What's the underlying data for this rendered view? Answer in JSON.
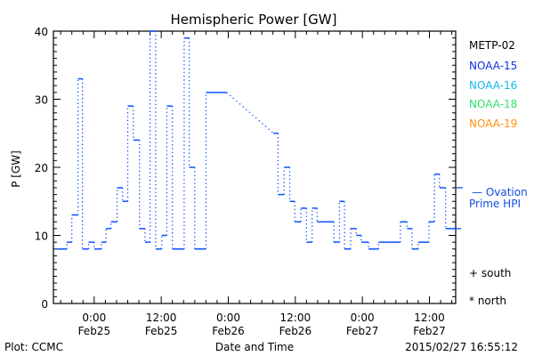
{
  "chart_data": {
    "type": "line",
    "title": "Hemispheric Power [GW]",
    "xlabel": "Date and Time",
    "ylabel": "P [GW]",
    "x_unit": "hours since 2015-02-25 00:00",
    "xlim": [
      -7.3,
      64.7
    ],
    "ylim": [
      0,
      40
    ],
    "yticks": [
      0,
      10,
      20,
      30,
      40
    ],
    "xticks": [
      {
        "h": 0,
        "time": "0:00",
        "date": "Feb25"
      },
      {
        "h": 12,
        "time": "12:00",
        "date": "Feb25"
      },
      {
        "h": 24,
        "time": "0:00",
        "date": "Feb26"
      },
      {
        "h": 36,
        "time": "12:00",
        "date": "Feb26"
      },
      {
        "h": 48,
        "time": "0:00",
        "date": "Feb27"
      },
      {
        "h": 60,
        "time": "12:00",
        "date": "Feb27"
      }
    ],
    "series": [
      {
        "name": "NOAA-15",
        "color": "#0a50ff",
        "steps": [
          [
            -6.8,
            -4.9,
            8
          ],
          [
            -4.9,
            -4,
            9
          ],
          [
            -4,
            -2.9,
            13
          ],
          [
            -2.9,
            -2.1,
            33
          ],
          [
            -2.1,
            -1,
            8
          ],
          [
            -1,
            0,
            9
          ],
          [
            0,
            1.3,
            8
          ],
          [
            1.3,
            2.1,
            9
          ],
          [
            2.1,
            3,
            11
          ],
          [
            3,
            4.1,
            12
          ],
          [
            4.1,
            5.1,
            17
          ],
          [
            5.1,
            6,
            15
          ],
          [
            6,
            7,
            29
          ],
          [
            7,
            8.1,
            24
          ],
          [
            8.1,
            9.1,
            11
          ],
          [
            9.1,
            10,
            9
          ],
          [
            10,
            11,
            40
          ],
          [
            11,
            12.1,
            8
          ],
          [
            12.1,
            13,
            10
          ],
          [
            13,
            14,
            29
          ],
          [
            14,
            16.1,
            8
          ],
          [
            16.1,
            17,
            39
          ],
          [
            17,
            18,
            20
          ],
          [
            18,
            20,
            8
          ],
          [
            20,
            23.7,
            31
          ],
          [
            32.1,
            32.9,
            25
          ],
          [
            32.9,
            34,
            16
          ],
          [
            34,
            35,
            20
          ],
          [
            35,
            35.9,
            15
          ],
          [
            35.9,
            37,
            12
          ],
          [
            37,
            38,
            14
          ],
          [
            38,
            39,
            9
          ],
          [
            39,
            39.9,
            14
          ],
          [
            39.9,
            42.9,
            12
          ],
          [
            42.9,
            43.9,
            9
          ],
          [
            43.9,
            44.8,
            15
          ],
          [
            44.8,
            45.9,
            8
          ],
          [
            45.9,
            46.9,
            11
          ],
          [
            46.9,
            47.8,
            10
          ],
          [
            47.8,
            49.1,
            9
          ],
          [
            49.1,
            50.9,
            8
          ],
          [
            50.9,
            54.8,
            9
          ],
          [
            54.8,
            56,
            12
          ],
          [
            56,
            56.9,
            11
          ],
          [
            56.9,
            58,
            8
          ],
          [
            58,
            59.9,
            9
          ],
          [
            59.9,
            60.9,
            12
          ],
          [
            60.9,
            61.8,
            19
          ],
          [
            61.8,
            62.9,
            17
          ],
          [
            62.9,
            64.7,
            11
          ]
        ]
      }
    ],
    "ovation_prime_hpi": 17,
    "legend": {
      "placement": "right",
      "items": [
        {
          "label": "METP-02",
          "color": "#000000"
        },
        {
          "label": "NOAA-15",
          "color": "#1030e0"
        },
        {
          "label": "NOAA-16",
          "color": "#10b8f0"
        },
        {
          "label": "NOAA-18",
          "color": "#30e070"
        },
        {
          "label": "NOAA-19",
          "color": "#ff9010"
        }
      ],
      "ovation_line1": "— Ovation",
      "ovation_line2": "Prime HPI",
      "ovation_color": "#1050e0",
      "south": "+ south",
      "north": "* north"
    }
  },
  "footer": {
    "plot_source": "Plot: CCMC",
    "timestamp": "2015/02/27 16:55:12"
  }
}
